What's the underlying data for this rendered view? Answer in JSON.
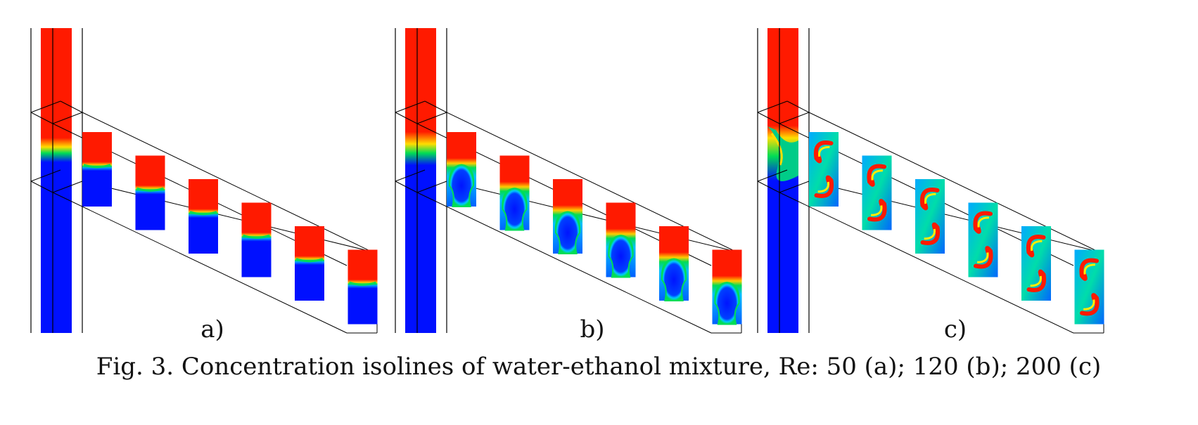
{
  "figure": {
    "panels": [
      {
        "label": "a)",
        "re": 50,
        "regime": "stratified"
      },
      {
        "label": "b)",
        "re": 120,
        "regime": "mushroom"
      },
      {
        "label": "c)",
        "re": 200,
        "regime": "spiral"
      }
    ],
    "caption": "Fig. 3. Concentration isolines of water-ethanol mixture, Re: 50 (a); 120 (b); 200 (c)",
    "colors": {
      "ethanol": "#ff0000",
      "water": "#0000ff",
      "interface_mid": "#00cc66",
      "interface_hi": "#ffff00",
      "frame": "#000000"
    },
    "cross_sections_per_panel": 6
  }
}
